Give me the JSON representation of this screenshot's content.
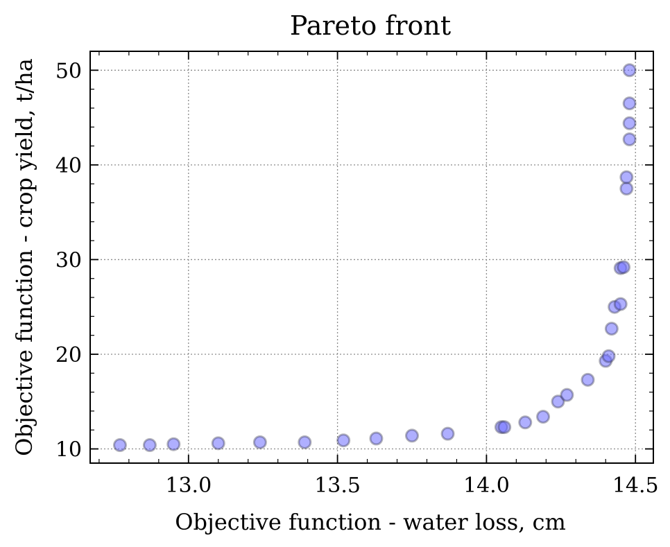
{
  "chart_data": {
    "type": "scatter",
    "title": "Pareto front",
    "xlabel": "Objective function - water loss, cm",
    "ylabel": "Objective function - crop yield, t/ha",
    "xlim": [
      12.67,
      14.56
    ],
    "ylim": [
      8.5,
      52
    ],
    "xticks": [
      13.0,
      13.5,
      14.0,
      14.5
    ],
    "xtick_labels": [
      "13.0",
      "13.5",
      "14.0",
      "14.5"
    ],
    "yticks": [
      10,
      20,
      30,
      40,
      50
    ],
    "ytick_labels": [
      "10",
      "20",
      "30",
      "40",
      "50"
    ],
    "x_minor_step": 0.1,
    "y_minor_step": 2,
    "grid": true,
    "marker_color": "#6e6eff",
    "series": [
      {
        "x": [
          12.77,
          12.87,
          12.95,
          13.1,
          13.24,
          13.39,
          13.52,
          13.63,
          13.75,
          13.87,
          14.05,
          14.06,
          14.13,
          14.19,
          14.24,
          14.27,
          14.34,
          14.4,
          14.41,
          14.42,
          14.43,
          14.45,
          14.45,
          14.46,
          14.47,
          14.47,
          14.48,
          14.48,
          14.48,
          14.48
        ],
        "y": [
          10.4,
          10.4,
          10.5,
          10.6,
          10.7,
          10.7,
          10.9,
          11.1,
          11.4,
          11.6,
          12.3,
          12.3,
          12.8,
          13.4,
          15.0,
          15.7,
          17.3,
          19.3,
          19.8,
          22.7,
          25.0,
          25.3,
          29.1,
          29.2,
          37.5,
          38.7,
          42.7,
          44.4,
          46.5,
          50.0
        ]
      }
    ]
  }
}
